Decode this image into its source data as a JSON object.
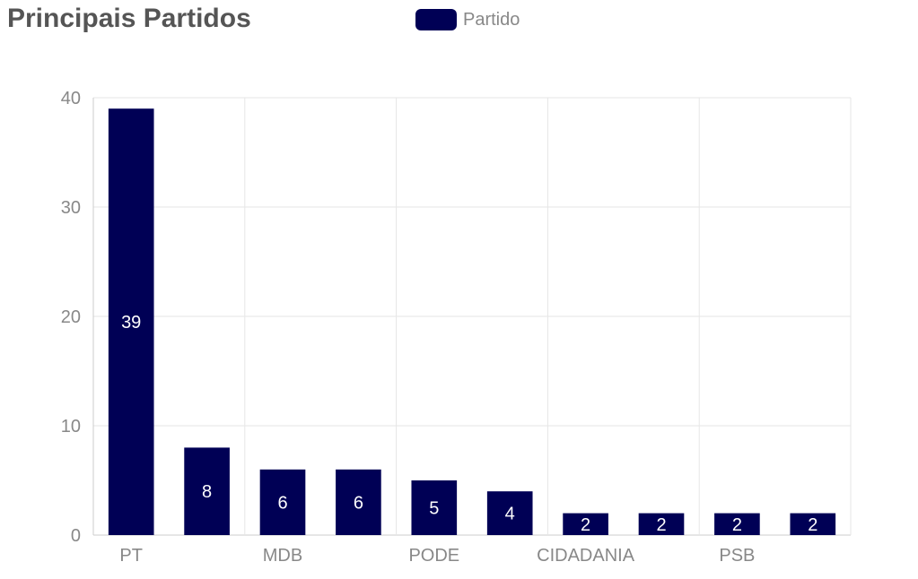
{
  "chart_data": {
    "type": "bar",
    "title": "Principais Partidos",
    "legend": {
      "label": "Partido",
      "color": "#000055",
      "position": "top"
    },
    "categories": [
      "PT",
      "",
      "MDB",
      "",
      "PODE",
      "",
      "CIDADANIA",
      "",
      "PSB",
      ""
    ],
    "x_tick_labels": [
      "PT",
      "MDB",
      "PODE",
      "CIDADANIA",
      "PSB"
    ],
    "series": [
      {
        "name": "Partido",
        "values": [
          39,
          8,
          6,
          6,
          5,
          4,
          2,
          2,
          2,
          2
        ]
      }
    ],
    "ylim": [
      0,
      40
    ],
    "y_ticks": [
      0,
      10,
      20,
      30,
      40
    ],
    "grid": true,
    "bar_color": "#000055",
    "data_labels": true
  }
}
